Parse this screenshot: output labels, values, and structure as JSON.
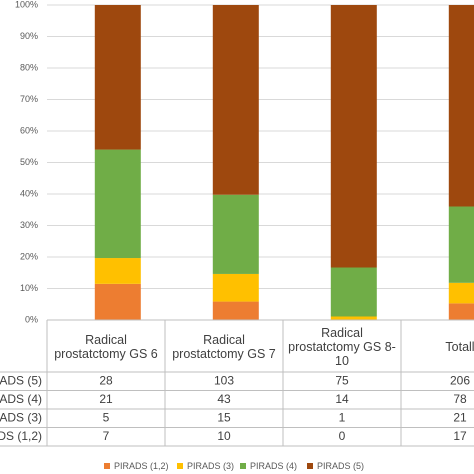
{
  "chart_data": {
    "type": "bar",
    "stack": "percent",
    "categories": [
      "Radical prostatctomy GS 6",
      "Radical prostatctomy GS 7",
      "Radical prostatctomy GS 8-10",
      "Totall"
    ],
    "series": [
      {
        "name": "PIRADS (1,2)",
        "color": "#ed7d31",
        "values": [
          7,
          10,
          0,
          17
        ]
      },
      {
        "name": "PIRADS (3)",
        "color": "#ffc000",
        "values": [
          5,
          15,
          1,
          21
        ]
      },
      {
        "name": "PIRADS (4)",
        "color": "#70ad47",
        "values": [
          21,
          43,
          14,
          78
        ]
      },
      {
        "name": "PIRADS (5)",
        "color": "#9e480e",
        "values": [
          28,
          103,
          75,
          206
        ]
      }
    ],
    "ylim": [
      0,
      100
    ],
    "yticks": [
      {
        "value": 0,
        "label": "0%"
      },
      {
        "value": 10,
        "label": "10%"
      },
      {
        "value": 20,
        "label": "20%"
      },
      {
        "value": 30,
        "label": "30%"
      },
      {
        "value": 40,
        "label": "40%"
      },
      {
        "value": 50,
        "label": "50%"
      },
      {
        "value": 60,
        "label": "60%"
      },
      {
        "value": 70,
        "label": "70%"
      },
      {
        "value": 80,
        "label": "80%"
      },
      {
        "value": 90,
        "label": "90%"
      },
      {
        "value": 100,
        "label": "100%"
      }
    ],
    "grid": true,
    "legend": "bottom"
  }
}
